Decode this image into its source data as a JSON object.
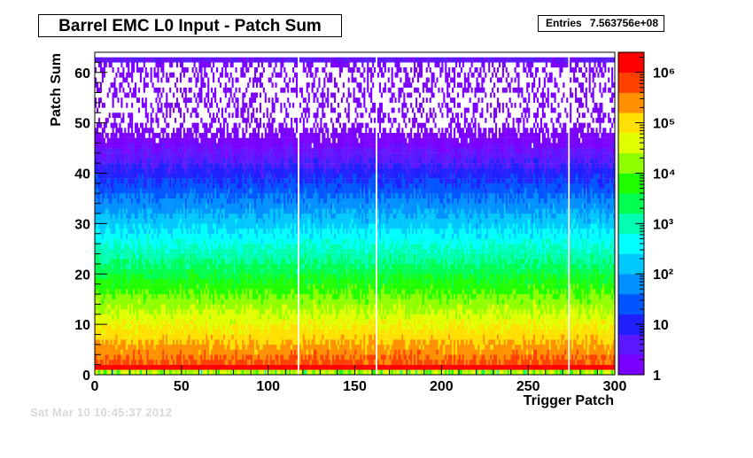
{
  "chart_data": {
    "type": "heatmap",
    "title": "Barrel EMC L0 Input - Patch Sum",
    "xlabel": "Trigger Patch",
    "ylabel": "Patch Sum",
    "xlim": [
      0,
      300
    ],
    "ylim": [
      0,
      64
    ],
    "x_ticks": [
      "0",
      "50",
      "100",
      "150",
      "200",
      "250",
      "300"
    ],
    "y_ticks": [
      "0",
      "10",
      "20",
      "30",
      "40",
      "50",
      "60"
    ],
    "z_scale": "log",
    "zlim": [
      1,
      2500000
    ],
    "z_ticks": [
      "1",
      "10",
      "10²",
      "10³",
      "10⁴",
      "10⁵",
      "10⁶"
    ],
    "entries": "7.563756e+08",
    "empty_columns": [
      117,
      162,
      273
    ],
    "grid": false
  },
  "stats": {
    "label": "Entries",
    "value": "7.563756e+08"
  },
  "footer": {
    "date": "Sat Mar 10 10:45:37 2012"
  },
  "colors": {
    "palette": [
      "#7a00ff",
      "#5a18ff",
      "#2020ff",
      "#0055ff",
      "#0090ff",
      "#00c8ff",
      "#00ffff",
      "#00ffb0",
      "#00ff50",
      "#20ff00",
      "#90ff00",
      "#e0ff00",
      "#ffe000",
      "#ff9000",
      "#ff4000",
      "#ff0000"
    ]
  }
}
